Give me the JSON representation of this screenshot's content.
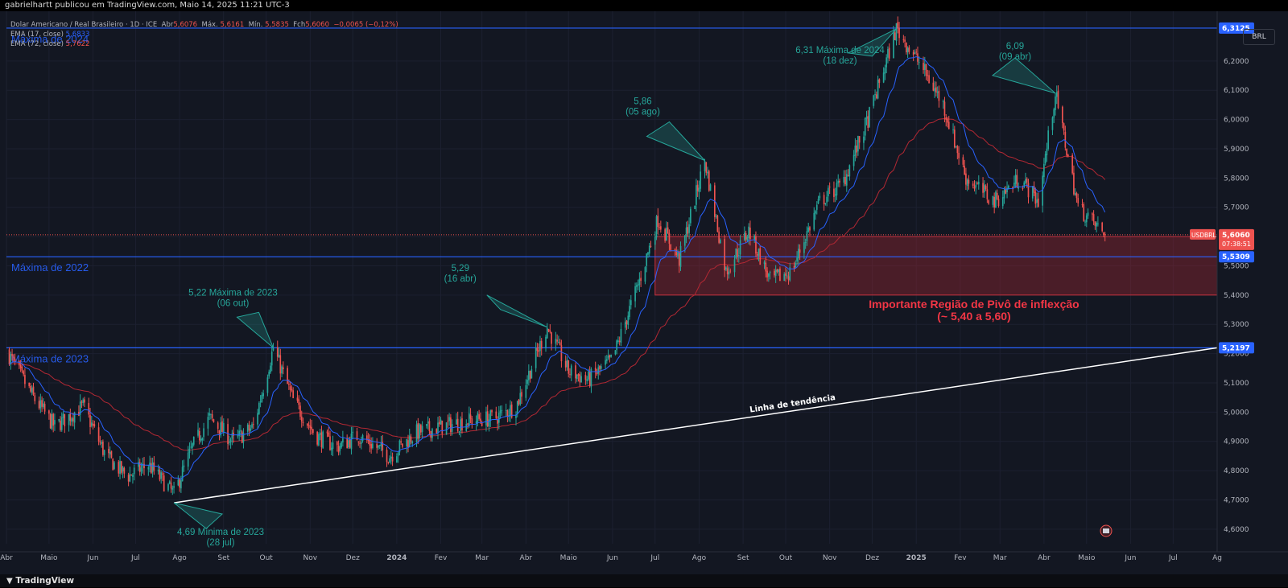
{
  "header": {
    "published": "gabrielhartt publicou em TradingView.com, Maio 14, 2025 11:21 UTC-3"
  },
  "legend": {
    "symbol": "Dolar Americano / Real Brasileiro · 1D · ICE",
    "open_label": "Abr",
    "open": "5,6076",
    "high_label": "Máx.",
    "high": "5,6161",
    "low_label": "Mín.",
    "low": "5,5835",
    "close_label": "Fch",
    "close": "5,6060",
    "change": "−0,0065 (−0,12%)",
    "ema17_label": "EMA (17, close)",
    "ema17": "5,6833",
    "ema72_label": "EMA (72, close)",
    "ema72": "5,7622"
  },
  "currency": "BRL",
  "footer": {
    "logo_text": "TradingView"
  },
  "colors": {
    "background": "#131722",
    "up": "#26a69a",
    "down": "#ef5350",
    "ema17": "#2962ff",
    "ema72": "#b22833",
    "hline": "#2962ff",
    "trendline": "#ffffff",
    "annotation_teal": "#26a69a",
    "zone_text": "#f23645"
  },
  "chart_data": {
    "type": "candlestick",
    "symbol": "USDBRL",
    "timeframe": "1D",
    "ylim": [
      4.55,
      6.37
    ],
    "y_ticks": [
      "4,6000",
      "4,7000",
      "4,8000",
      "4,9000",
      "5,0000",
      "5,1000",
      "5,2000",
      "5,3000",
      "5,4000",
      "5,5000",
      "5,6000",
      "5,7000",
      "5,8000",
      "5,9000",
      "6,0000",
      "6,1000",
      "6,2000"
    ],
    "x_ticks": [
      "Abr",
      "Maio",
      "Jun",
      "Jul",
      "Ago",
      "Set",
      "Out",
      "Nov",
      "Dez",
      "2024",
      "Fev",
      "Mar",
      "Abr",
      "Maio",
      "Jun",
      "Jul",
      "Ago",
      "Set",
      "Out",
      "Nov",
      "Dez",
      "2025",
      "Fev",
      "Mar",
      "Abr",
      "Maio",
      "Jun",
      "Jul",
      "Ag"
    ],
    "x_start": "2023-04-01",
    "x_end": "2025-08-01",
    "price_path": [
      [
        "2023-04-01",
        5.21
      ],
      [
        "2023-04-20",
        5.05
      ],
      [
        "2023-05-05",
        4.95
      ],
      [
        "2023-05-25",
        5.02
      ],
      [
        "2023-06-10",
        4.85
      ],
      [
        "2023-06-25",
        4.78
      ],
      [
        "2023-07-10",
        4.82
      ],
      [
        "2023-07-28",
        4.72
      ],
      [
        "2023-08-10",
        4.88
      ],
      [
        "2023-08-22",
        4.98
      ],
      [
        "2023-09-08",
        4.9
      ],
      [
        "2023-09-22",
        4.95
      ],
      [
        "2023-10-06",
        5.22
      ],
      [
        "2023-10-20",
        5.04
      ],
      [
        "2023-11-05",
        4.92
      ],
      [
        "2023-11-20",
        4.88
      ],
      [
        "2023-12-05",
        4.92
      ],
      [
        "2023-12-27",
        4.85
      ],
      [
        "2024-01-15",
        4.93
      ],
      [
        "2024-02-01",
        4.95
      ],
      [
        "2024-02-20",
        4.97
      ],
      [
        "2024-03-10",
        4.98
      ],
      [
        "2024-03-25",
        5.02
      ],
      [
        "2024-04-16",
        5.29
      ],
      [
        "2024-05-01",
        5.14
      ],
      [
        "2024-05-15",
        5.11
      ],
      [
        "2024-06-01",
        5.18
      ],
      [
        "2024-06-20",
        5.45
      ],
      [
        "2024-07-03",
        5.66
      ],
      [
        "2024-07-18",
        5.52
      ],
      [
        "2024-08-05",
        5.86
      ],
      [
        "2024-08-20",
        5.48
      ],
      [
        "2024-09-05",
        5.62
      ],
      [
        "2024-09-20",
        5.45
      ],
      [
        "2024-10-05",
        5.48
      ],
      [
        "2024-10-25",
        5.72
      ],
      [
        "2024-11-10",
        5.78
      ],
      [
        "2024-11-28",
        6.0
      ],
      [
        "2024-12-18",
        6.31
      ],
      [
        "2025-01-05",
        6.18
      ],
      [
        "2025-01-20",
        6.05
      ],
      [
        "2025-02-05",
        5.8
      ],
      [
        "2025-02-25",
        5.72
      ],
      [
        "2025-03-15",
        5.8
      ],
      [
        "2025-03-28",
        5.72
      ],
      [
        "2025-04-09",
        6.09
      ],
      [
        "2025-04-25",
        5.7
      ],
      [
        "2025-05-14",
        5.606
      ]
    ],
    "last_price": {
      "label": "USDBRL",
      "value": "5,6060",
      "countdown": "07:38:51",
      "y": 5.606
    },
    "horizontal_levels": [
      {
        "name": "Máxima de 2024",
        "y": 6.3125,
        "badge": "6,3125"
      },
      {
        "name": "Máxima de 2022",
        "y": 5.5309,
        "badge": "5,5309"
      },
      {
        "name": "Máxima de 2023",
        "y": 5.2197,
        "badge": "5,2197"
      }
    ],
    "zone": {
      "y_top": 5.6,
      "y_bottom": 5.4,
      "x_start": "2024-07-01",
      "label_line1": "Importante Região de Pivô de inflexção",
      "label_line2": "(~ 5,40 a 5,60)"
    },
    "trendline": {
      "start": [
        "2023-07-28",
        4.69
      ],
      "end": [
        "2025-08-01",
        5.2197
      ],
      "label": "Linha de tendência"
    },
    "annotations": [
      {
        "line1": "4,69 Mínima de 2023",
        "line2": "(28 jul)",
        "x": "2023-07-28",
        "y": 4.69
      },
      {
        "line1": "5,22 Máxima de 2023",
        "line2": "(06 out)",
        "x": "2023-10-06",
        "y": 5.22
      },
      {
        "line1": "5,29",
        "line2": "(16 abr)",
        "x": "2024-04-16",
        "y": 5.29
      },
      {
        "line1": "5,86",
        "line2": "(05 ago)",
        "x": "2024-08-05",
        "y": 5.86
      },
      {
        "line1": "6,31 Máxima de 2024",
        "line2": "(18 dez)",
        "x": "2024-12-18",
        "y": 6.31
      },
      {
        "line1": "6,09",
        "line2": "(09 abr)",
        "x": "2025-04-09",
        "y": 6.09
      }
    ]
  }
}
